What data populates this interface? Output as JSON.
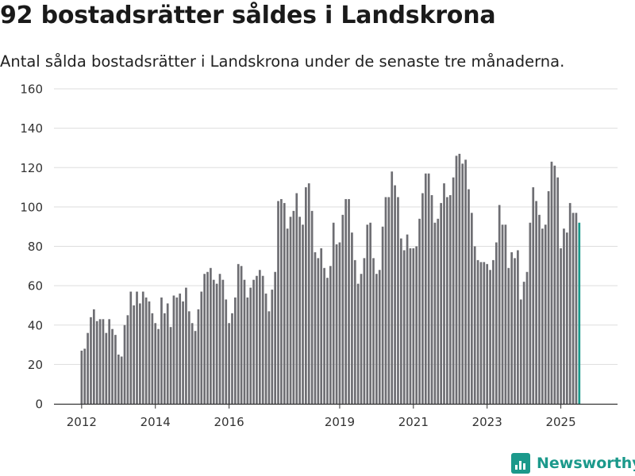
{
  "title": "92 bostadsrätter såldes i Landskrona",
  "subtitle": "Antal sålda bostadsrätter i Landskrona under de senaste tre månaderna.",
  "brand": {
    "name": "Newsworthy"
  },
  "colors": {
    "bar": "#6e6e73",
    "highlight": "#1b998b",
    "grid": "#dddddd"
  },
  "chart_data": {
    "type": "bar",
    "title": "92 bostadsrätter såldes i Landskrona",
    "subtitle": "Antal sålda bostadsrätter i Landskrona under de senaste tre månaderna.",
    "xlabel": "",
    "ylabel": "",
    "ylim": [
      0,
      160
    ],
    "yticks": [
      0,
      20,
      40,
      60,
      80,
      100,
      120,
      140,
      160
    ],
    "xtick_labels": [
      {
        "label": "2012",
        "index": 0
      },
      {
        "label": "2014",
        "index": 24
      },
      {
        "label": "2016",
        "index": 48
      },
      {
        "label": "2019",
        "index": 84
      },
      {
        "label": "2021",
        "index": 108
      },
      {
        "label": "2023",
        "index": 132
      },
      {
        "label": "2025",
        "index": 156
      }
    ],
    "grid": true,
    "legend": "none",
    "highlight_last": true,
    "annotation": {
      "text": "92",
      "index": 166
    },
    "values": [
      27,
      28,
      36,
      44,
      48,
      42,
      43,
      43,
      36,
      43,
      38,
      35,
      25,
      24,
      40,
      45,
      57,
      50,
      57,
      51,
      57,
      54,
      52,
      46,
      41,
      38,
      54,
      46,
      51,
      39,
      55,
      54,
      56,
      52,
      59,
      47,
      41,
      37,
      48,
      57,
      66,
      67,
      69,
      63,
      61,
      66,
      63,
      53,
      41,
      46,
      54,
      71,
      70,
      63,
      54,
      59,
      63,
      65,
      68,
      65,
      56,
      47,
      58,
      67,
      103,
      104,
      102,
      89,
      95,
      98,
      107,
      95,
      91,
      110,
      112,
      98,
      77,
      74,
      79,
      69,
      64,
      70,
      92,
      81,
      82,
      96,
      104,
      104,
      87,
      73,
      61,
      66,
      74,
      91,
      92,
      74,
      66,
      68,
      90,
      105,
      105,
      118,
      111,
      105,
      84,
      78,
      86,
      79,
      79,
      80,
      94,
      107,
      117,
      117,
      106,
      92,
      94,
      102,
      112,
      105,
      106,
      115,
      126,
      127,
      122,
      124,
      109,
      97,
      80,
      73,
      72,
      72,
      71,
      68,
      73,
      82,
      101,
      91,
      91,
      69,
      77,
      74,
      78,
      53,
      62,
      67,
      92,
      110,
      103,
      96,
      89,
      91,
      108,
      123,
      121,
      115,
      79,
      89,
      87,
      102,
      97,
      97,
      92
    ]
  }
}
